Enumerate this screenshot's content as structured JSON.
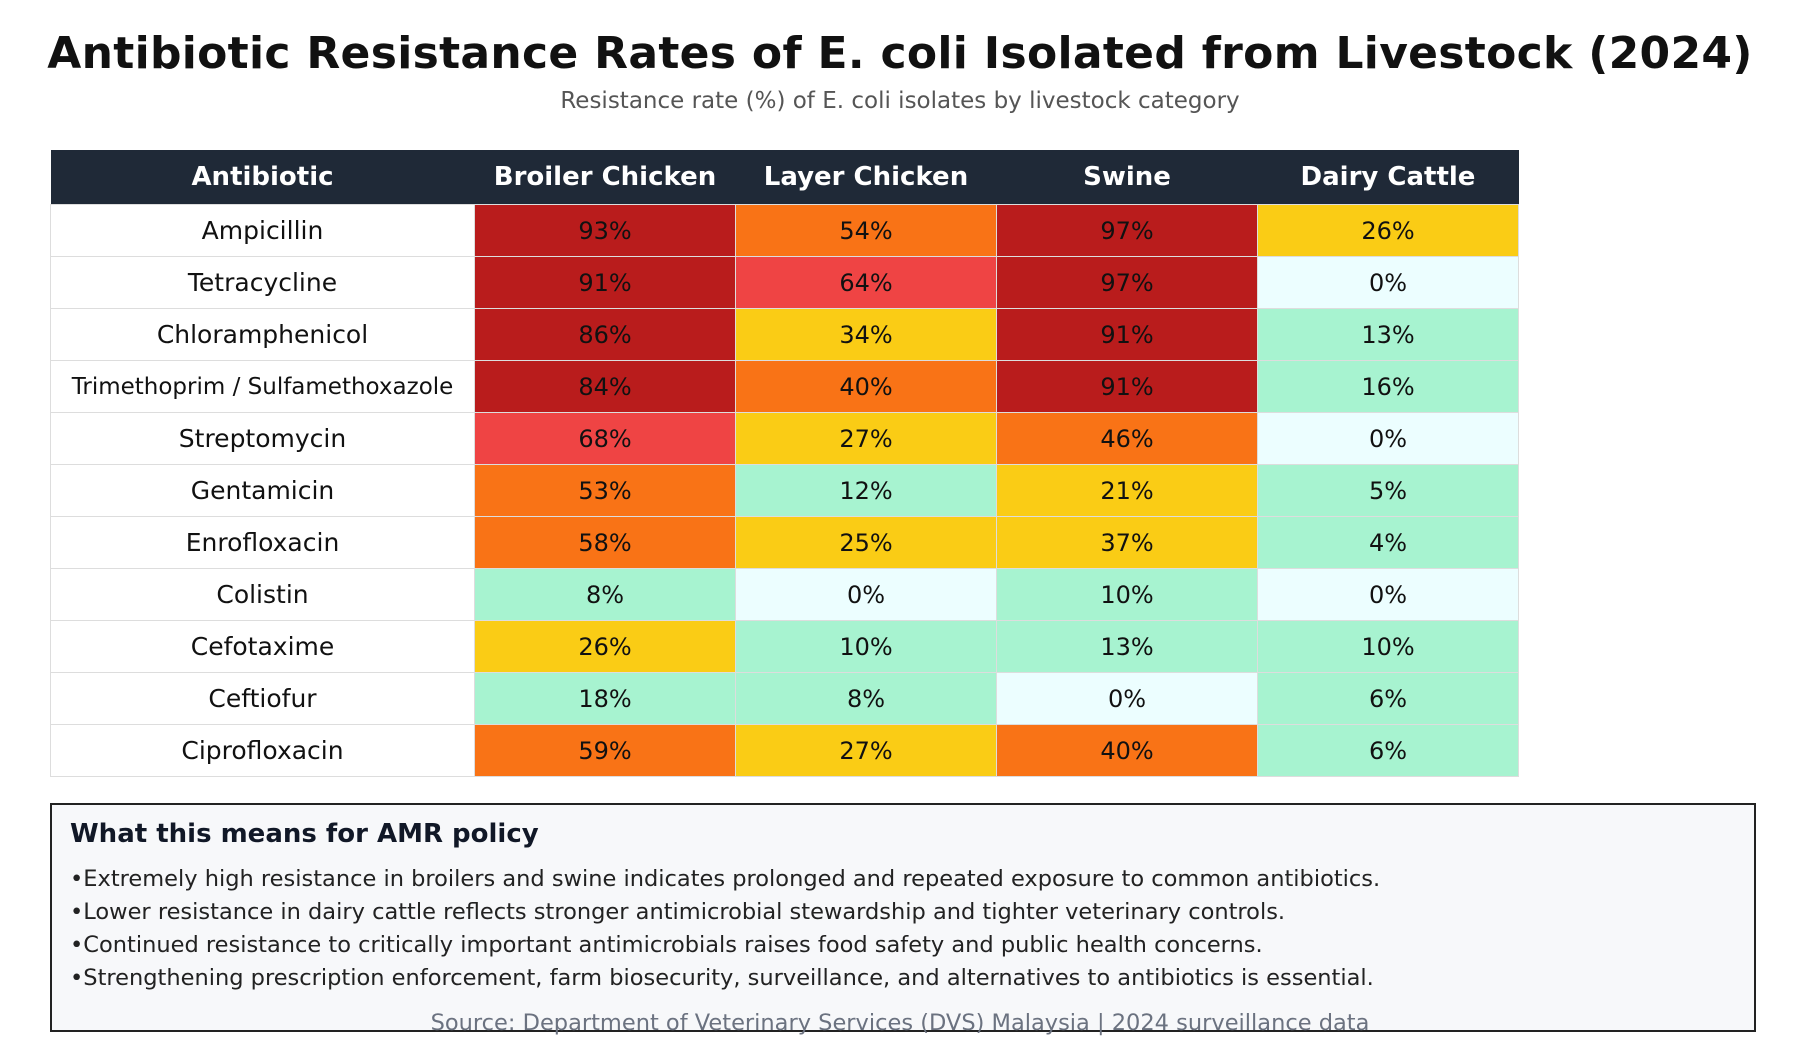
{
  "title": "Antibiotic Resistance Rates of E. coli Isolated from Livestock (2024)",
  "subtitle": "Resistance rate (%) of E. coli isolates by livestock category",
  "chart_data": {
    "type": "table",
    "title": "Antibiotic Resistance Rates of E. coli Isolated from Livestock (2024)",
    "subtitle": "Resistance rate (%) of E. coli isolates by livestock category",
    "columns": [
      "Antibiotic",
      "Broiler Chicken",
      "Layer Chicken",
      "Swine",
      "Dairy Cattle"
    ],
    "unit": "%",
    "rows": [
      {
        "antibiotic": "Ampicillin",
        "values": [
          93,
          54,
          97,
          26
        ]
      },
      {
        "antibiotic": "Tetracycline",
        "values": [
          91,
          64,
          97,
          0
        ]
      },
      {
        "antibiotic": "Chloramphenicol",
        "values": [
          86,
          34,
          91,
          13
        ]
      },
      {
        "antibiotic": "Trimethoprim / Sulfamethoxazole",
        "values": [
          84,
          40,
          91,
          16
        ]
      },
      {
        "antibiotic": "Streptomycin",
        "values": [
          68,
          27,
          46,
          0
        ]
      },
      {
        "antibiotic": "Gentamicin",
        "values": [
          53,
          12,
          21,
          5
        ]
      },
      {
        "antibiotic": "Enrofloxacin",
        "values": [
          58,
          25,
          37,
          4
        ]
      },
      {
        "antibiotic": "Colistin",
        "values": [
          8,
          0,
          10,
          0
        ]
      },
      {
        "antibiotic": "Cefotaxime",
        "values": [
          26,
          10,
          13,
          10
        ]
      },
      {
        "antibiotic": "Ceftiofur",
        "values": [
          18,
          8,
          0,
          6
        ]
      },
      {
        "antibiotic": "Ciprofloxacin",
        "values": [
          59,
          27,
          40,
          6
        ]
      }
    ],
    "color_scale": [
      {
        "min": 80,
        "color": "#b91c1c"
      },
      {
        "min": 60,
        "color": "#ef4444"
      },
      {
        "min": 40,
        "color": "#f97316"
      },
      {
        "min": 20,
        "color": "#facc15"
      },
      {
        "min": 1,
        "color": "#a7f3d0"
      },
      {
        "min": 0,
        "color": "#ecfeff"
      }
    ],
    "header_color": "#1f2937"
  },
  "policy": {
    "title": "What this means for AMR policy",
    "points": [
      "Extremely high resistance in broilers and swine indicates prolonged and repeated exposure to common antibiotics.",
      "Lower resistance in dairy cattle reflects stronger antimicrobial stewardship and tighter veterinary controls.",
      "Continued resistance to critically important antimicrobials raises food safety and public health concerns.",
      "Strengthening prescription enforcement, farm biosecurity, surveillance, and alternatives to antibiotics is essential."
    ]
  },
  "source": "Source: Department of Veterinary Services (DVS) Malaysia | 2024 surveillance data"
}
